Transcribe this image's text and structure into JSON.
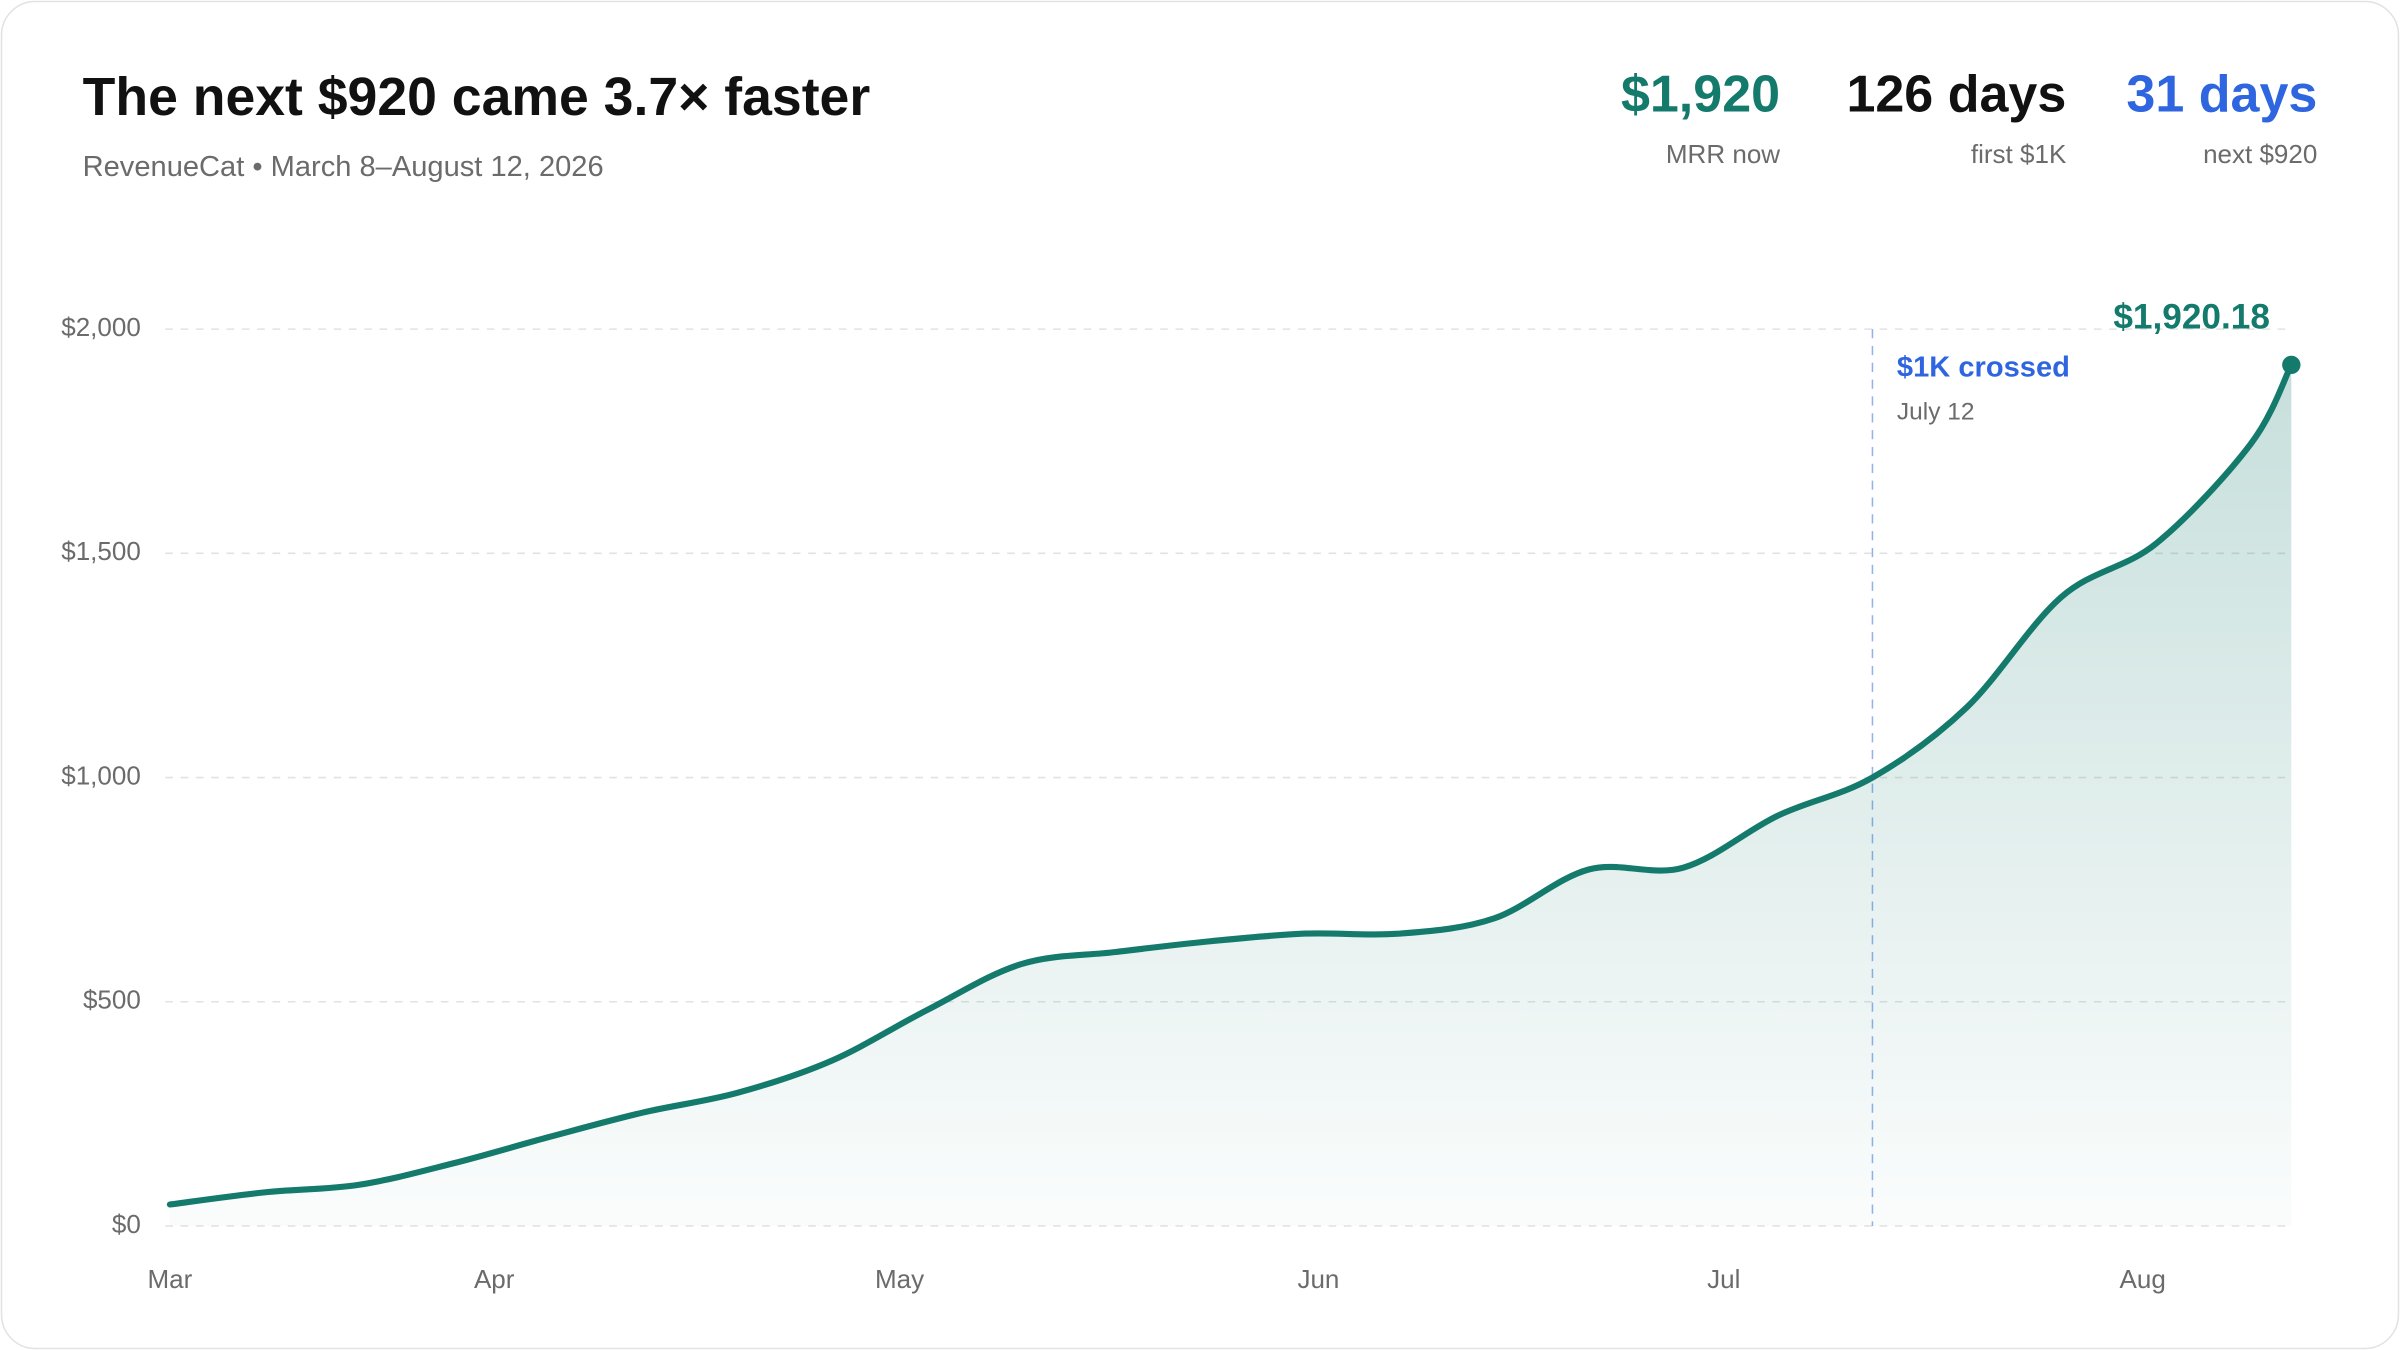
{
  "chart_data": {
    "type": "line",
    "title": "The next $920 came 3.7× faster",
    "subtitle": "RevenueCat • March 8–August 12, 2026",
    "stats": [
      {
        "value": "$1,920",
        "label": "MRR now",
        "color": "#147a6c"
      },
      {
        "value": "126 days",
        "label": "first $1K",
        "color": "#111111"
      },
      {
        "value": "31 days",
        "label": "next $920",
        "color": "#2f66e0"
      }
    ],
    "x": [
      "2026-03-08",
      "2026-03-15",
      "2026-03-22",
      "2026-03-29",
      "2026-04-05",
      "2026-04-12",
      "2026-04-19",
      "2026-04-26",
      "2026-05-03",
      "2026-05-10",
      "2026-05-17",
      "2026-05-24",
      "2026-05-31",
      "2026-06-07",
      "2026-06-14",
      "2026-06-21",
      "2026-06-28",
      "2026-07-05",
      "2026-07-12",
      "2026-07-19",
      "2026-07-26",
      "2026-08-02",
      "2026-08-09",
      "2026-08-12"
    ],
    "series": [
      {
        "name": "MRR",
        "color": "#147a6c",
        "values": [
          48,
          75,
          92,
          140,
          198,
          253,
          297,
          369,
          481,
          584,
          611,
          635,
          652,
          652,
          686,
          795,
          799,
          915,
          1000,
          1157,
          1403,
          1522,
          1744,
          1920.18
        ],
        "value_labels": [
          null,
          null,
          null,
          null,
          null,
          null,
          null,
          null,
          null,
          null,
          null,
          null,
          null,
          null,
          null,
          null,
          null,
          null,
          null,
          null,
          null,
          null,
          null,
          "$1,920.18"
        ]
      }
    ],
    "xlim": [
      "2026-03-08",
      "2026-08-12"
    ],
    "xticks": [
      {
        "value": "2026-03-08",
        "label": "Mar"
      },
      {
        "value": "2026-04-01",
        "label": "Apr"
      },
      {
        "value": "2026-05-01",
        "label": "May"
      },
      {
        "value": "2026-06-01",
        "label": "Jun"
      },
      {
        "value": "2026-07-01",
        "label": "Jul"
      },
      {
        "value": "2026-08-01",
        "label": "Aug"
      }
    ],
    "ylim": [
      0,
      2000
    ],
    "yticks": [
      {
        "value": 0,
        "label": "$0"
      },
      {
        "value": 500,
        "label": "$500"
      },
      {
        "value": 1000,
        "label": "$1,000"
      },
      {
        "value": 1500,
        "label": "$1,500"
      },
      {
        "value": 2000,
        "label": "$2,000"
      }
    ],
    "grid": true,
    "annotation": {
      "x": "2026-07-12",
      "text": "$1K crossed",
      "date_label": "July 12",
      "color": "#2f66e0"
    }
  }
}
